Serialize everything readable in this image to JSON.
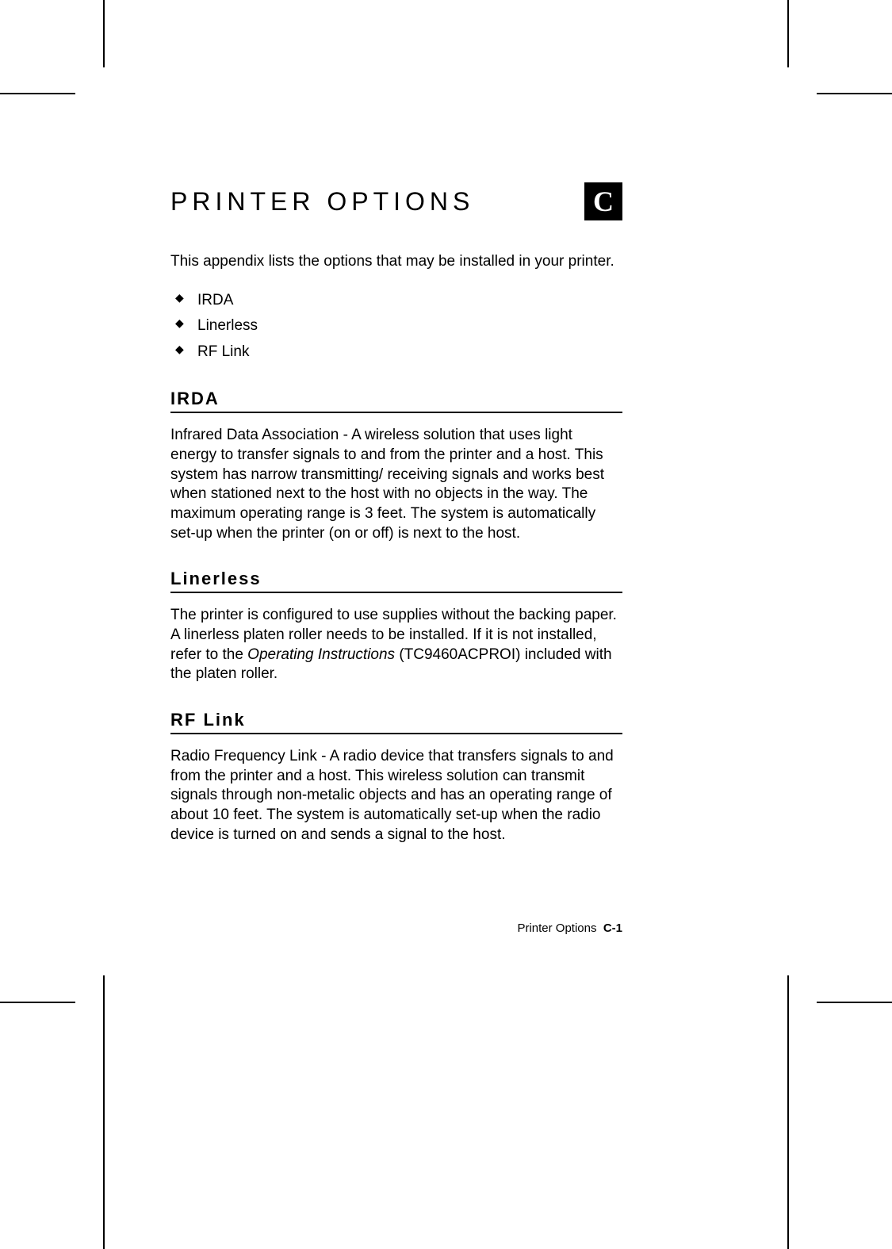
{
  "title": "PRINTER OPTIONS",
  "appendix_letter": "C",
  "intro": "This appendix lists the options that may be installed in your printer.",
  "bullets": {
    "item1": "IRDA",
    "item2": "Linerless",
    "item3": "RF Link"
  },
  "sections": {
    "irda": {
      "heading": "IRDA",
      "body": "Infrared Data Association - A wireless solution that uses light energy to transfer signals to and from the printer and a host.  This system has narrow transmitting/ receiving signals and works best when stationed next to the host with no objects in the way.  The maximum operating range is 3 feet.  The system is automatically set-up when the printer (on or off) is next to the host."
    },
    "linerless": {
      "heading": "Linerless",
      "body_before_italic": "The printer is configured to use supplies without the backing paper.  A linerless platen roller needs to be installed.  If it is not installed, refer to the ",
      "italic_text": "Operating Instructions",
      "body_after_italic": " (TC9460ACPROI) included with the platen roller."
    },
    "rflink": {
      "heading": "RF Link",
      "body": "Radio Frequency Link - A radio device that transfers signals to and from the printer and a host.  This wireless solution can transmit signals through non-metalic objects and has an operating range of about 10 feet.  The system is automatically set-up when the radio device is turned on and sends a signal to the host."
    }
  },
  "footer": {
    "label": "Printer Options",
    "page": "C-1"
  },
  "colors": {
    "text": "#000000",
    "background": "#ffffff",
    "appendix_box_bg": "#000000",
    "appendix_box_fg": "#ffffff"
  }
}
